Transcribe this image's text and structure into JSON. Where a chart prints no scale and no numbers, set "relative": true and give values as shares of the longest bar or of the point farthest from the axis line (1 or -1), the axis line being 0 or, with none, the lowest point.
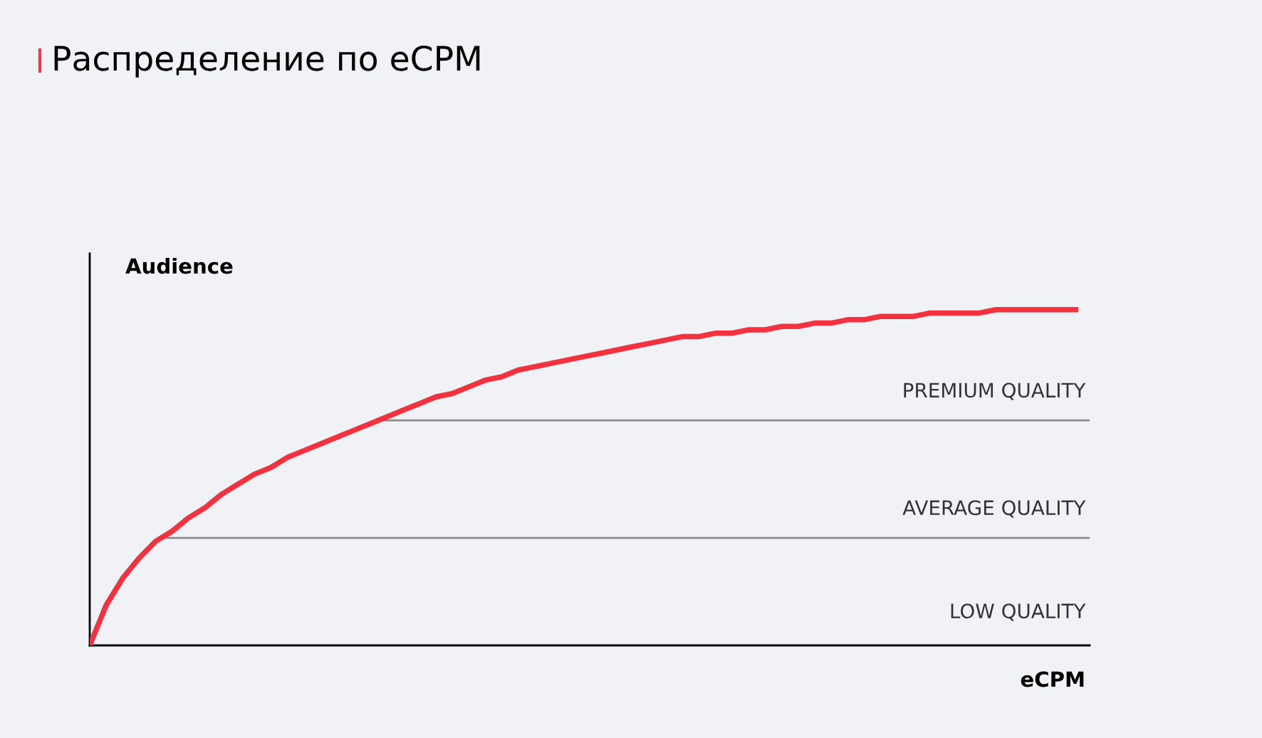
{
  "chart_data": {
    "type": "line",
    "title": "Распределение по eCPM",
    "xlabel": "eCPM",
    "ylabel": "Audience",
    "relative": true,
    "categories": [
      null,
      null,
      null,
      null,
      null,
      null,
      null,
      null,
      null,
      null,
      null,
      null,
      null,
      null,
      null,
      null,
      null,
      null,
      null,
      null,
      null,
      null,
      null,
      null,
      null,
      null,
      null,
      null,
      null,
      null,
      null,
      null,
      null,
      null,
      null,
      null,
      null,
      null,
      null,
      null,
      null,
      null,
      null,
      null,
      null,
      null,
      null,
      null,
      null,
      null,
      null,
      null,
      null,
      null,
      null,
      null,
      null,
      null,
      null,
      null,
      null
    ],
    "series": [
      {
        "color": "#f2333f",
        "values": [
          0,
          0.12,
          0.2,
          0.26,
          0.31,
          0.34,
          0.38,
          0.41,
          0.45,
          0.48,
          0.51,
          0.53,
          0.56,
          0.58,
          0.6,
          0.62,
          0.64,
          0.66,
          0.68,
          0.7,
          0.72,
          0.74,
          0.75,
          0.77,
          0.79,
          0.8,
          0.82,
          0.83,
          0.84,
          0.85,
          0.86,
          0.87,
          0.88,
          0.89,
          0.9,
          0.91,
          0.92,
          0.92,
          0.93,
          0.93,
          0.94,
          0.94,
          0.95,
          0.95,
          0.96,
          0.96,
          0.97,
          0.97,
          0.98,
          0.98,
          0.98,
          0.99,
          0.99,
          0.99,
          0.99,
          1.0,
          1.0,
          1.0,
          1.0,
          1.0,
          1.0
        ]
      }
    ],
    "ref_lines": [
      {
        "axis": "y",
        "value": 0.67,
        "label": "PREMIUM QUALITY",
        "color": "#8c8c8c"
      },
      {
        "axis": "y",
        "value": 0.32,
        "label": "AVERAGE QUALITY",
        "color": "#8c8c8c"
      }
    ],
    "annotations": [
      "LOW QUALITY"
    ],
    "line_style": "solid"
  }
}
